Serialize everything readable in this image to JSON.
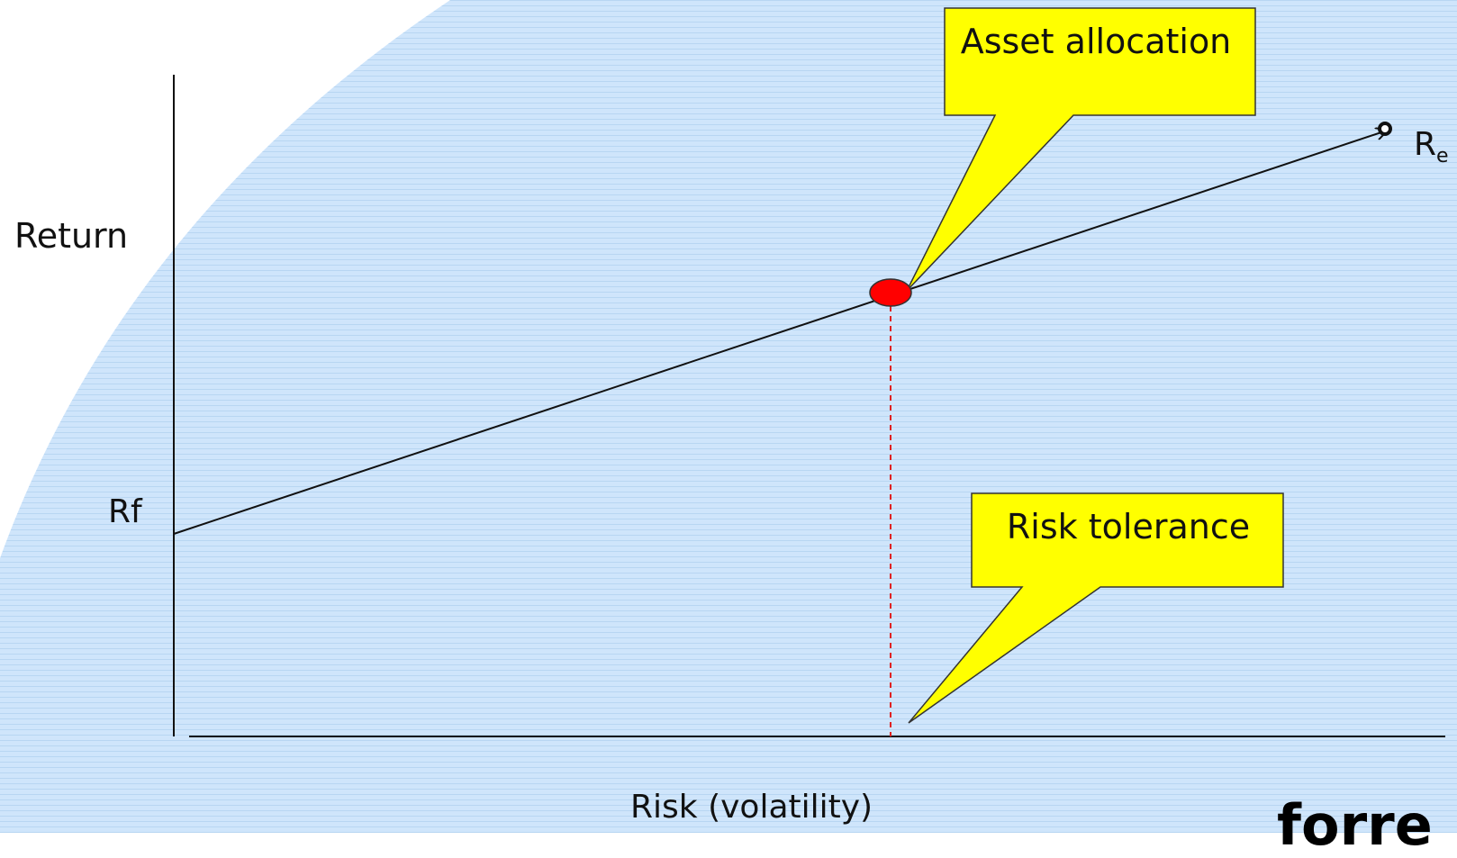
{
  "diagram": {
    "y_axis_label": "Return",
    "x_axis_label": "Risk (volatility)",
    "rf_label": "Rf",
    "re_label_main": "R",
    "re_label_sub": "e",
    "callout_asset_allocation": "Asset allocation",
    "callout_risk_tolerance": "Risk tolerance",
    "brand_fragment": "forre"
  },
  "colors": {
    "background_blue": "#cce5ff",
    "callout_fill": "#ffff00",
    "point_fill": "#ff0000",
    "dashed_line": "#e02020",
    "line": "#111111"
  }
}
